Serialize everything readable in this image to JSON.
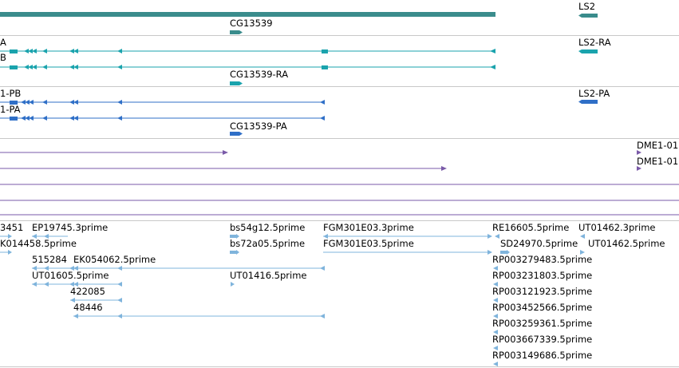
{
  "colors": {
    "gene": "#3a8c8c",
    "mrna": "#1aa3ad",
    "protein": "#2f6fc7",
    "insertion": "#7a5aa8",
    "est": "#7fb4dc",
    "separator": "#c8c8c8"
  },
  "genes": {
    "labels": [
      "LS2",
      "CG13539"
    ]
  },
  "mrnas": {
    "labels": [
      "A",
      "B",
      "LS2-RA",
      "CG13539-RA"
    ]
  },
  "proteins": {
    "labels": [
      "1-PB",
      "1-PA",
      "LS2-PA",
      "CG13539-PA"
    ]
  },
  "insertions": {
    "labels": [
      "DME1-01",
      "DME1-01"
    ]
  },
  "ests": {
    "labels": [
      "3451",
      "EP19745.3prime",
      "bs54g12.5prime",
      "FGM301E03.3prime",
      "RE16605.5prime",
      "UT01462.3prime",
      "K014458.5prime",
      "bs72a05.5prime",
      "FGM301E03.5prime",
      "SD24970.5prime",
      "UT01462.5prime",
      "515284",
      "EK054062.5prime",
      "RP003279483.5prime",
      "UT01605.5prime",
      "UT01416.5prime",
      "RP003231803.5prime",
      "422085",
      "RP003121923.5prime",
      "48446",
      "RP003452566.5prime",
      "RP003259361.5prime",
      "RP003667339.5prime",
      "RP003149686.5prime"
    ]
  }
}
